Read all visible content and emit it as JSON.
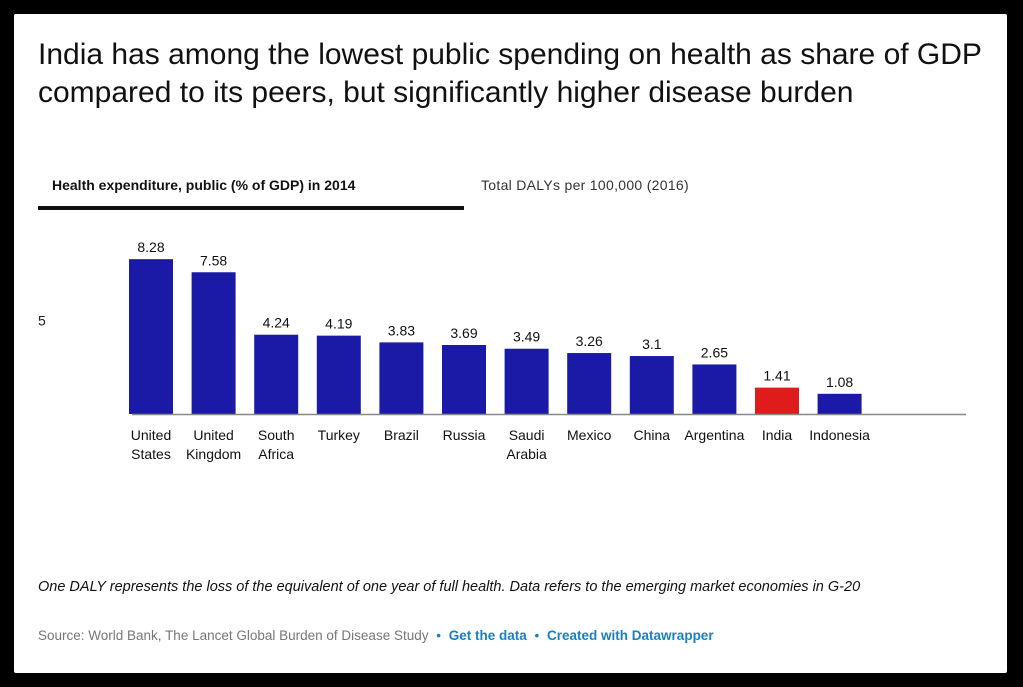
{
  "headline": "India has among the lowest public spending on health as share of GDP compared to its peers, but significantly higher disease burden",
  "tabs": [
    {
      "label": "Health expenditure, public (% of GDP) in 2014",
      "active": true
    },
    {
      "label": "Total DALYs per 100,000 (2016)",
      "active": false
    }
  ],
  "chart_data": {
    "type": "bar",
    "title": "",
    "xlabel": "",
    "ylabel": "",
    "y_ticks": [
      5
    ],
    "ylim": [
      0,
      9
    ],
    "grid": false,
    "categories": [
      [
        "United",
        "States"
      ],
      [
        "United",
        "Kingdom"
      ],
      [
        "South",
        "Africa"
      ],
      [
        "Turkey"
      ],
      [
        "Brazil"
      ],
      [
        "Russia"
      ],
      [
        "Saudi",
        "Arabia"
      ],
      [
        "Mexico"
      ],
      [
        "China"
      ],
      [
        "Argentina"
      ],
      [
        "India"
      ],
      [
        "Indonesia"
      ]
    ],
    "values": [
      8.28,
      7.58,
      4.24,
      4.19,
      3.83,
      3.69,
      3.49,
      3.26,
      3.1,
      2.65,
      1.41,
      1.08
    ],
    "value_labels": [
      "8.28",
      "7.58",
      "4.24",
      "4.19",
      "3.83",
      "3.69",
      "3.49",
      "3.26",
      "3.1",
      "2.65",
      "1.41",
      "1.08"
    ],
    "colors": {
      "default": "#1a1aa6",
      "highlight": "#e01b1b",
      "baseline": "#888888"
    },
    "highlight_index": 10
  },
  "note": "One DALY represents the loss of the equivalent of one year of full health. Data refers to the emerging market economies in G-20",
  "footer": {
    "source": "Source: World Bank, The Lancet Global Burden of Disease Study",
    "separator": "•",
    "get_data": "Get the data",
    "created_with": "Created with Datawrapper"
  }
}
